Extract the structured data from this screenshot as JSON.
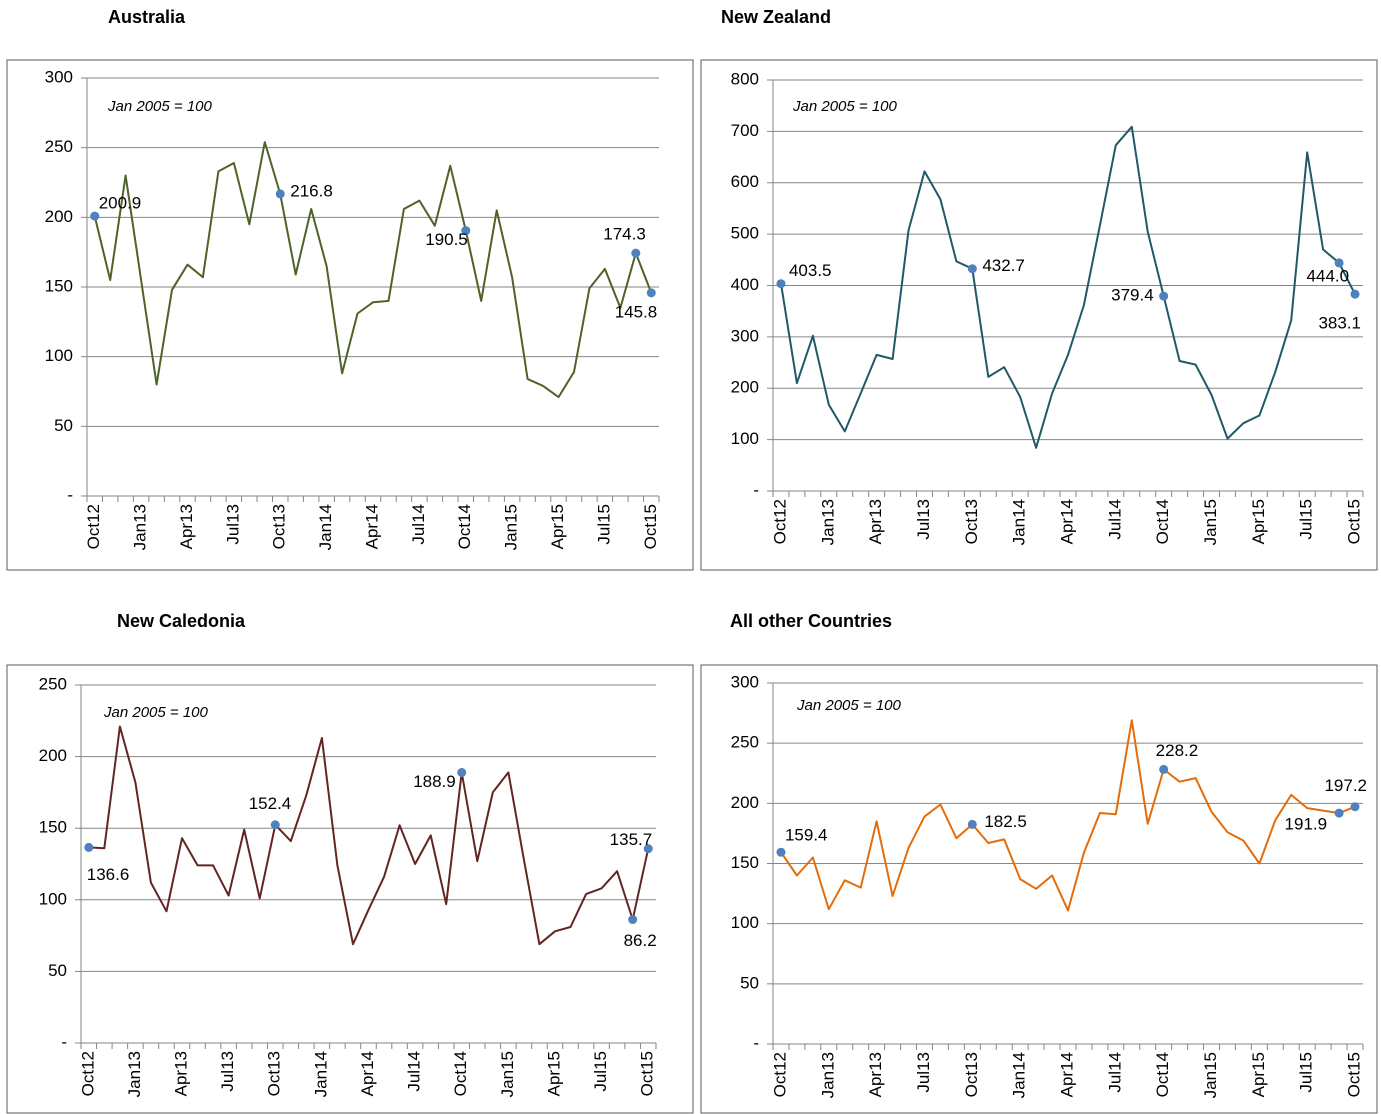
{
  "chart_data": [
    {
      "type": "line",
      "title": "Australia",
      "note": "Jan 2005 = 100",
      "color": "#4f6228",
      "marker_color": "#4f81bd",
      "categories": [
        "Oct12",
        null,
        null,
        "Jan13",
        null,
        null,
        "Apr13",
        null,
        null,
        "Jul13",
        null,
        null,
        "Oct13",
        null,
        null,
        "Jan14",
        null,
        null,
        "Apr14",
        null,
        null,
        "Jul14",
        null,
        null,
        "Oct14",
        null,
        null,
        "Jan15",
        null,
        null,
        "Apr15",
        null,
        null,
        "Jul15",
        null,
        null,
        "Oct15"
      ],
      "values": [
        200.9,
        155,
        230,
        155,
        80,
        148,
        166,
        157,
        233,
        239,
        195,
        254,
        216.8,
        159,
        206,
        165,
        88,
        131,
        139,
        140,
        206,
        212,
        194,
        237,
        190.5,
        140,
        205,
        157,
        84,
        79,
        71,
        89,
        149,
        163,
        135,
        174.3,
        145.8
      ],
      "value_labels": [
        "200.9",
        null,
        null,
        null,
        null,
        null,
        null,
        null,
        null,
        null,
        null,
        null,
        "216.8",
        null,
        null,
        null,
        null,
        null,
        null,
        null,
        null,
        null,
        null,
        null,
        "190.5",
        null,
        null,
        null,
        null,
        null,
        null,
        null,
        null,
        null,
        null,
        "174.3",
        "145.8"
      ],
      "ylim": [
        0,
        300
      ],
      "yticks": [
        {
          "value": 0,
          "label": "-"
        },
        50,
        100,
        150,
        200,
        250,
        300
      ],
      "grid": true
    },
    {
      "type": "line",
      "title": "New Zealand",
      "note": "Jan 2005 = 100",
      "color": "#215968",
      "marker_color": "#4f81bd",
      "categories": [
        "Oct12",
        null,
        null,
        "Jan13",
        null,
        null,
        "Apr13",
        null,
        null,
        "Jul13",
        null,
        null,
        "Oct13",
        null,
        null,
        "Jan14",
        null,
        null,
        "Apr14",
        null,
        null,
        "Jul14",
        null,
        null,
        "Oct14",
        null,
        null,
        "Jan15",
        null,
        null,
        "Apr15",
        null,
        null,
        "Jul15",
        null,
        null,
        "Oct15"
      ],
      "values": [
        403.5,
        210,
        302,
        168,
        116,
        190,
        265,
        257,
        507,
        622,
        568,
        447,
        432.7,
        222,
        241,
        183,
        84,
        190,
        265,
        362,
        517,
        673,
        709,
        505,
        379.4,
        253,
        246,
        187,
        102,
        132,
        147,
        232,
        332,
        659,
        470,
        444.0,
        383.1
      ],
      "value_labels": [
        "403.5",
        null,
        null,
        null,
        null,
        null,
        null,
        null,
        null,
        null,
        null,
        null,
        "432.7",
        null,
        null,
        null,
        null,
        null,
        null,
        null,
        null,
        null,
        null,
        null,
        "379.4",
        null,
        null,
        null,
        null,
        null,
        null,
        null,
        null,
        null,
        null,
        "444.0",
        "383.1"
      ],
      "ylim": [
        0,
        800
      ],
      "yticks": [
        {
          "value": 0,
          "label": "-"
        },
        100,
        200,
        300,
        400,
        500,
        600,
        700,
        800
      ],
      "grid": true
    },
    {
      "type": "line",
      "title": "New Caledonia",
      "note": "Jan 2005 = 100",
      "color": "#632523",
      "marker_color": "#4f81bd",
      "categories": [
        "Oct12",
        null,
        null,
        "Jan13",
        null,
        null,
        "Apr13",
        null,
        null,
        "Jul13",
        null,
        null,
        "Oct13",
        null,
        null,
        "Jan14",
        null,
        null,
        "Apr14",
        null,
        null,
        "Jul14",
        null,
        null,
        "Oct14",
        null,
        null,
        "Jan15",
        null,
        null,
        "Apr15",
        null,
        null,
        "Jul15",
        null,
        null,
        "Oct15"
      ],
      "values": [
        136.6,
        136,
        221,
        182,
        112,
        92,
        143,
        124,
        124,
        103,
        149,
        101,
        152.4,
        141,
        173,
        213,
        124,
        69,
        93,
        116,
        152,
        125,
        145,
        97,
        188.9,
        127,
        175,
        189,
        128,
        69,
        78,
        81,
        104,
        108,
        120,
        86.2,
        135.7
      ],
      "value_labels": [
        "136.6",
        null,
        null,
        null,
        null,
        null,
        null,
        null,
        null,
        null,
        null,
        null,
        "152.4",
        null,
        null,
        null,
        null,
        null,
        null,
        null,
        null,
        null,
        null,
        null,
        "188.9",
        null,
        null,
        null,
        null,
        null,
        null,
        null,
        null,
        null,
        null,
        "86.2",
        "135.7"
      ],
      "ylim": [
        0,
        250
      ],
      "yticks": [
        {
          "value": 0,
          "label": "-"
        },
        50,
        100,
        150,
        200,
        250
      ],
      "grid": true
    },
    {
      "type": "line",
      "title": "All other Countries",
      "note": "Jan 2005 = 100",
      "color": "#e46c0a",
      "marker_color": "#4f81bd",
      "categories": [
        "Oct12",
        null,
        null,
        "Jan13",
        null,
        null,
        "Apr13",
        null,
        null,
        "Jul13",
        null,
        null,
        "Oct13",
        null,
        null,
        "Jan14",
        null,
        null,
        "Apr14",
        null,
        null,
        "Jul14",
        null,
        null,
        "Oct14",
        null,
        null,
        "Jan15",
        null,
        null,
        "Apr15",
        null,
        null,
        "Jul15",
        null,
        null,
        "Oct15"
      ],
      "values": [
        159.4,
        140,
        155,
        112,
        136,
        130,
        185,
        123,
        163,
        189,
        199,
        171,
        182.5,
        167,
        170,
        137,
        129,
        140,
        111,
        159,
        192,
        191,
        269,
        183,
        228.2,
        218,
        221,
        193,
        176,
        169,
        150,
        186,
        207,
        196,
        194,
        191.9,
        197.2
      ],
      "value_labels": [
        "159.4",
        null,
        null,
        null,
        null,
        null,
        null,
        null,
        null,
        null,
        null,
        null,
        "182.5",
        null,
        null,
        null,
        null,
        null,
        null,
        null,
        null,
        null,
        null,
        null,
        "228.2",
        null,
        null,
        null,
        null,
        null,
        null,
        null,
        null,
        null,
        null,
        "191.9",
        "197.2"
      ],
      "ylim": [
        0,
        300
      ],
      "yticks": [
        {
          "value": 0,
          "label": "-"
        },
        50,
        100,
        150,
        200,
        250,
        300
      ],
      "grid": true
    }
  ]
}
